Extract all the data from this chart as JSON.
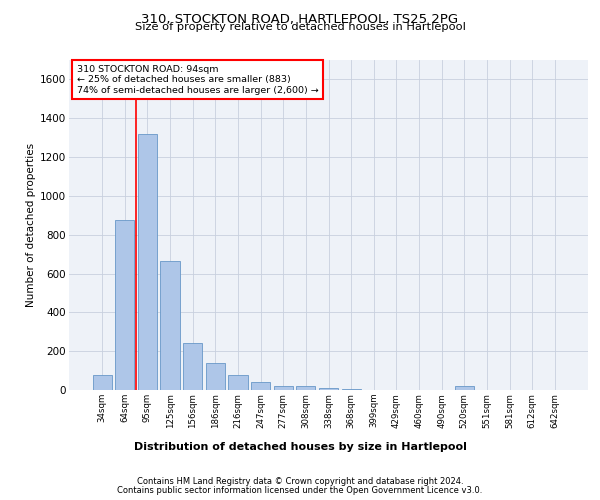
{
  "title1": "310, STOCKTON ROAD, HARTLEPOOL, TS25 2PG",
  "title2": "Size of property relative to detached houses in Hartlepool",
  "xlabel": "Distribution of detached houses by size in Hartlepool",
  "ylabel": "Number of detached properties",
  "categories": [
    "34sqm",
    "64sqm",
    "95sqm",
    "125sqm",
    "156sqm",
    "186sqm",
    "216sqm",
    "247sqm",
    "277sqm",
    "308sqm",
    "338sqm",
    "368sqm",
    "399sqm",
    "429sqm",
    "460sqm",
    "490sqm",
    "520sqm",
    "551sqm",
    "581sqm",
    "612sqm",
    "642sqm"
  ],
  "values": [
    75,
    875,
    1320,
    665,
    240,
    140,
    75,
    40,
    20,
    20,
    10,
    5,
    0,
    0,
    0,
    0,
    20,
    0,
    0,
    0,
    0
  ],
  "bar_color": "#aec6e8",
  "bar_edge_color": "#6898c8",
  "property_label": "310 STOCKTON ROAD: 94sqm",
  "annotation_line1": "← 25% of detached houses are smaller (883)",
  "annotation_line2": "74% of semi-detached houses are larger (2,600) →",
  "ylim": [
    0,
    1700
  ],
  "yticks": [
    0,
    200,
    400,
    600,
    800,
    1000,
    1200,
    1400,
    1600
  ],
  "footer1": "Contains HM Land Registry data © Crown copyright and database right 2024.",
  "footer2": "Contains public sector information licensed under the Open Government Licence v3.0.",
  "bg_color": "#eef2f8",
  "grid_color": "#c8d0de"
}
